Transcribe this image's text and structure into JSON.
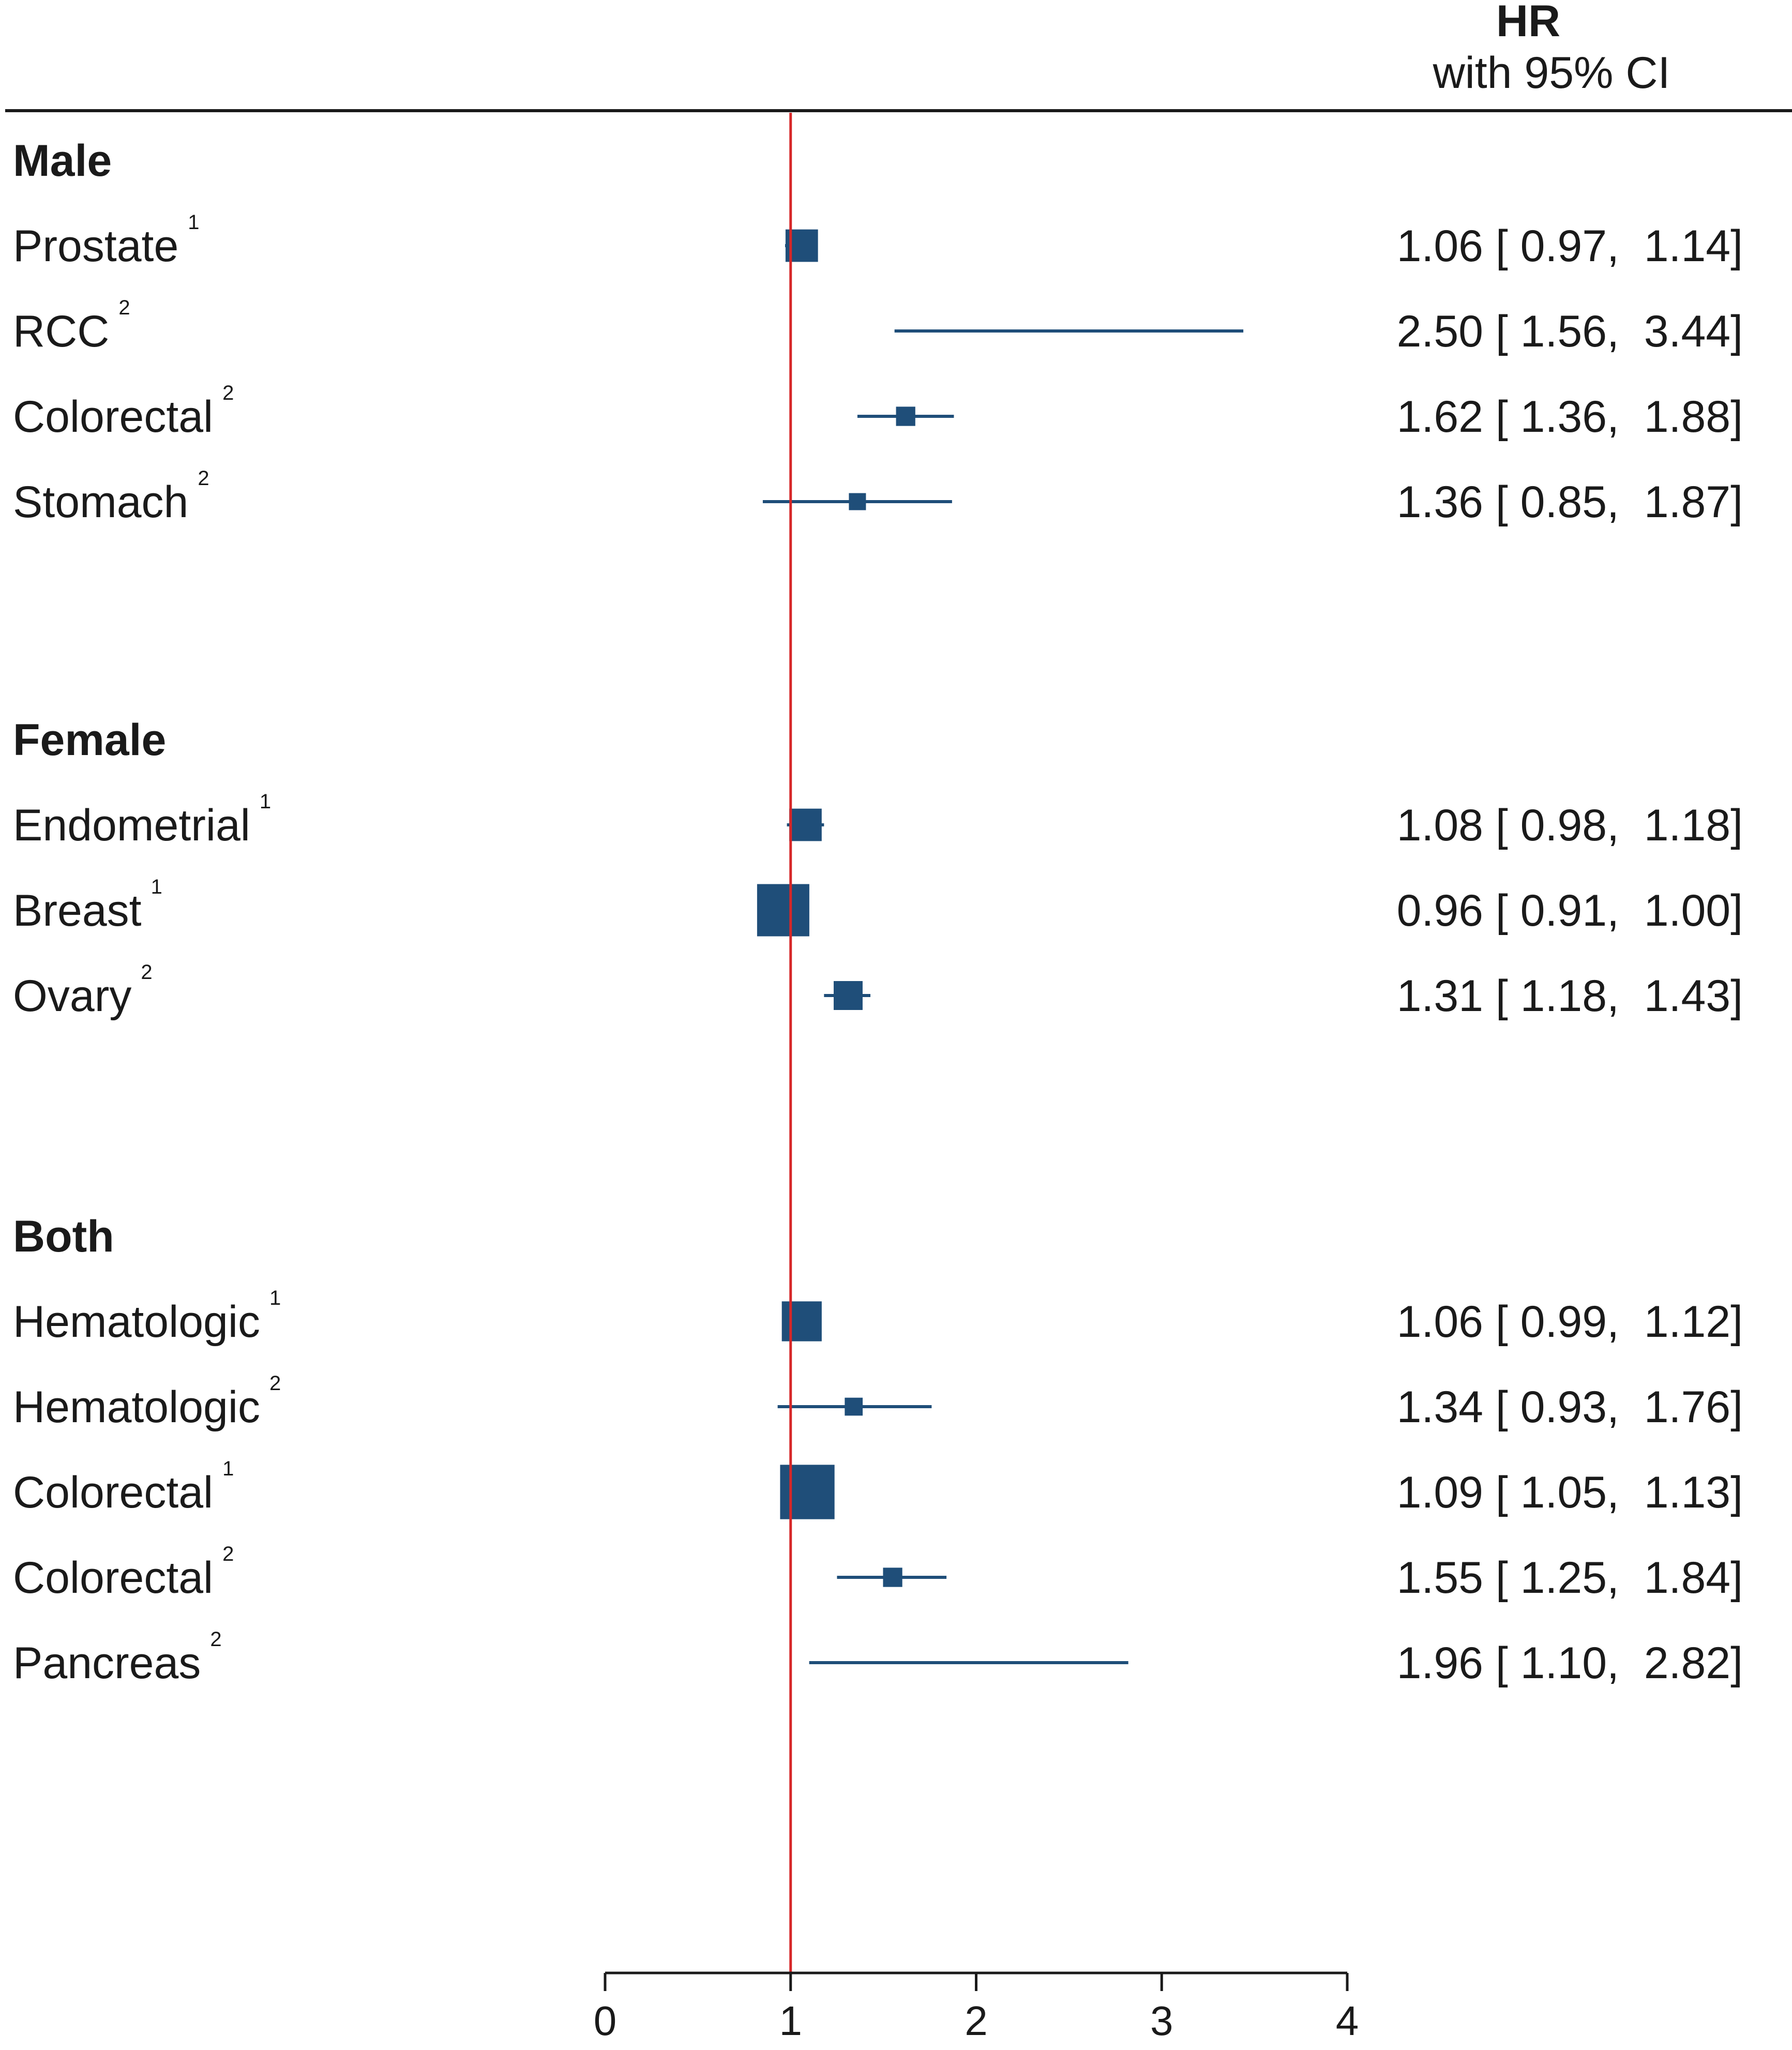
{
  "chart_data": {
    "type": "forest",
    "header": {
      "title": "HR",
      "subtitle": "with 95% CI"
    },
    "reference_line": 1,
    "xlim": [
      0,
      4
    ],
    "xticks": [
      "0",
      "1",
      "2",
      "3",
      "4"
    ],
    "colors": {
      "marker": "#1f4e79",
      "reference": "#d62728",
      "axis": "#1a1a1a"
    },
    "groups": [
      {
        "name": "Male",
        "rows": [
          {
            "label": "Prostate",
            "sup": "1",
            "hr": 1.06,
            "lo": 0.97,
            "hi": 1.14,
            "text": "1.06 [ 0.97,  1.14]",
            "weight": 0.55
          },
          {
            "label": "RCC",
            "sup": "2",
            "hr": 2.5,
            "lo": 1.56,
            "hi": 3.44,
            "text": "2.50 [ 1.56,  3.44]",
            "weight": 0.0
          },
          {
            "label": "Colorectal",
            "sup": "2",
            "hr": 1.62,
            "lo": 1.36,
            "hi": 1.88,
            "text": "1.62 [ 1.36,  1.88]",
            "weight": 0.25
          },
          {
            "label": "Stomach",
            "sup": "2",
            "hr": 1.36,
            "lo": 0.85,
            "hi": 1.87,
            "text": "1.36 [ 0.85,  1.87]",
            "weight": 0.2
          }
        ]
      },
      {
        "name": "Female",
        "rows": [
          {
            "label": "Endometrial",
            "sup": "1",
            "hr": 1.08,
            "lo": 0.98,
            "hi": 1.18,
            "text": "1.08 [ 0.98,  1.18]",
            "weight": 0.55
          },
          {
            "label": "Breast",
            "sup": "1",
            "hr": 0.96,
            "lo": 0.91,
            "hi": 1.0,
            "text": "0.96 [ 0.91,  1.00]",
            "weight": 1.0
          },
          {
            "label": "Ovary",
            "sup": "2",
            "hr": 1.31,
            "lo": 1.18,
            "hi": 1.43,
            "text": "1.31 [ 1.18,  1.43]",
            "weight": 0.47
          }
        ]
      },
      {
        "name": "Both",
        "rows": [
          {
            "label": "Hematologic",
            "sup": "1",
            "hr": 1.06,
            "lo": 0.99,
            "hi": 1.12,
            "text": "1.06 [ 0.99,  1.12]",
            "weight": 0.72
          },
          {
            "label": "Hematologic",
            "sup": "2",
            "hr": 1.34,
            "lo": 0.93,
            "hi": 1.76,
            "text": "1.34 [ 0.93,  1.76]",
            "weight": 0.22
          },
          {
            "label": "Colorectal",
            "sup": "1",
            "hr": 1.09,
            "lo": 1.05,
            "hi": 1.13,
            "text": "1.09 [ 1.05,  1.13]",
            "weight": 1.05
          },
          {
            "label": "Colorectal",
            "sup": "2",
            "hr": 1.55,
            "lo": 1.25,
            "hi": 1.84,
            "text": "1.55 [ 1.25,  1.84]",
            "weight": 0.25
          },
          {
            "label": "Pancreas",
            "sup": "2",
            "hr": 1.96,
            "lo": 1.1,
            "hi": 2.82,
            "text": "1.96 [ 1.10,  2.82]",
            "weight": 0.0
          }
        ]
      }
    ]
  }
}
